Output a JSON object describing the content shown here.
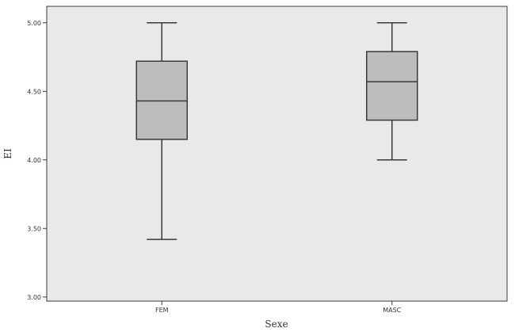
{
  "chart_data": {
    "type": "boxplot",
    "title": "",
    "xlabel": "Sexe",
    "ylabel": "EI",
    "categories": [
      "FEM",
      "MASC"
    ],
    "boxes": [
      {
        "category": "FEM",
        "min": 3.42,
        "q1": 4.15,
        "median": 4.43,
        "q3": 4.72,
        "max": 5.0
      },
      {
        "category": "MASC",
        "min": 4.0,
        "q1": 4.29,
        "median": 4.57,
        "q3": 4.79,
        "max": 5.0
      }
    ],
    "ylim": [
      2.97,
      5.12
    ],
    "yticks": [
      3.0,
      3.5,
      4.0,
      4.5,
      5.0
    ],
    "ytick_labels": [
      "3.00",
      "3.50",
      "4.00",
      "4.50",
      "5.00"
    ],
    "grid": false,
    "legend": "none",
    "colors": {
      "plot_background": "#e9e9e9",
      "box_fill": "#bdbdbd",
      "line": "#3a3a3a"
    }
  }
}
